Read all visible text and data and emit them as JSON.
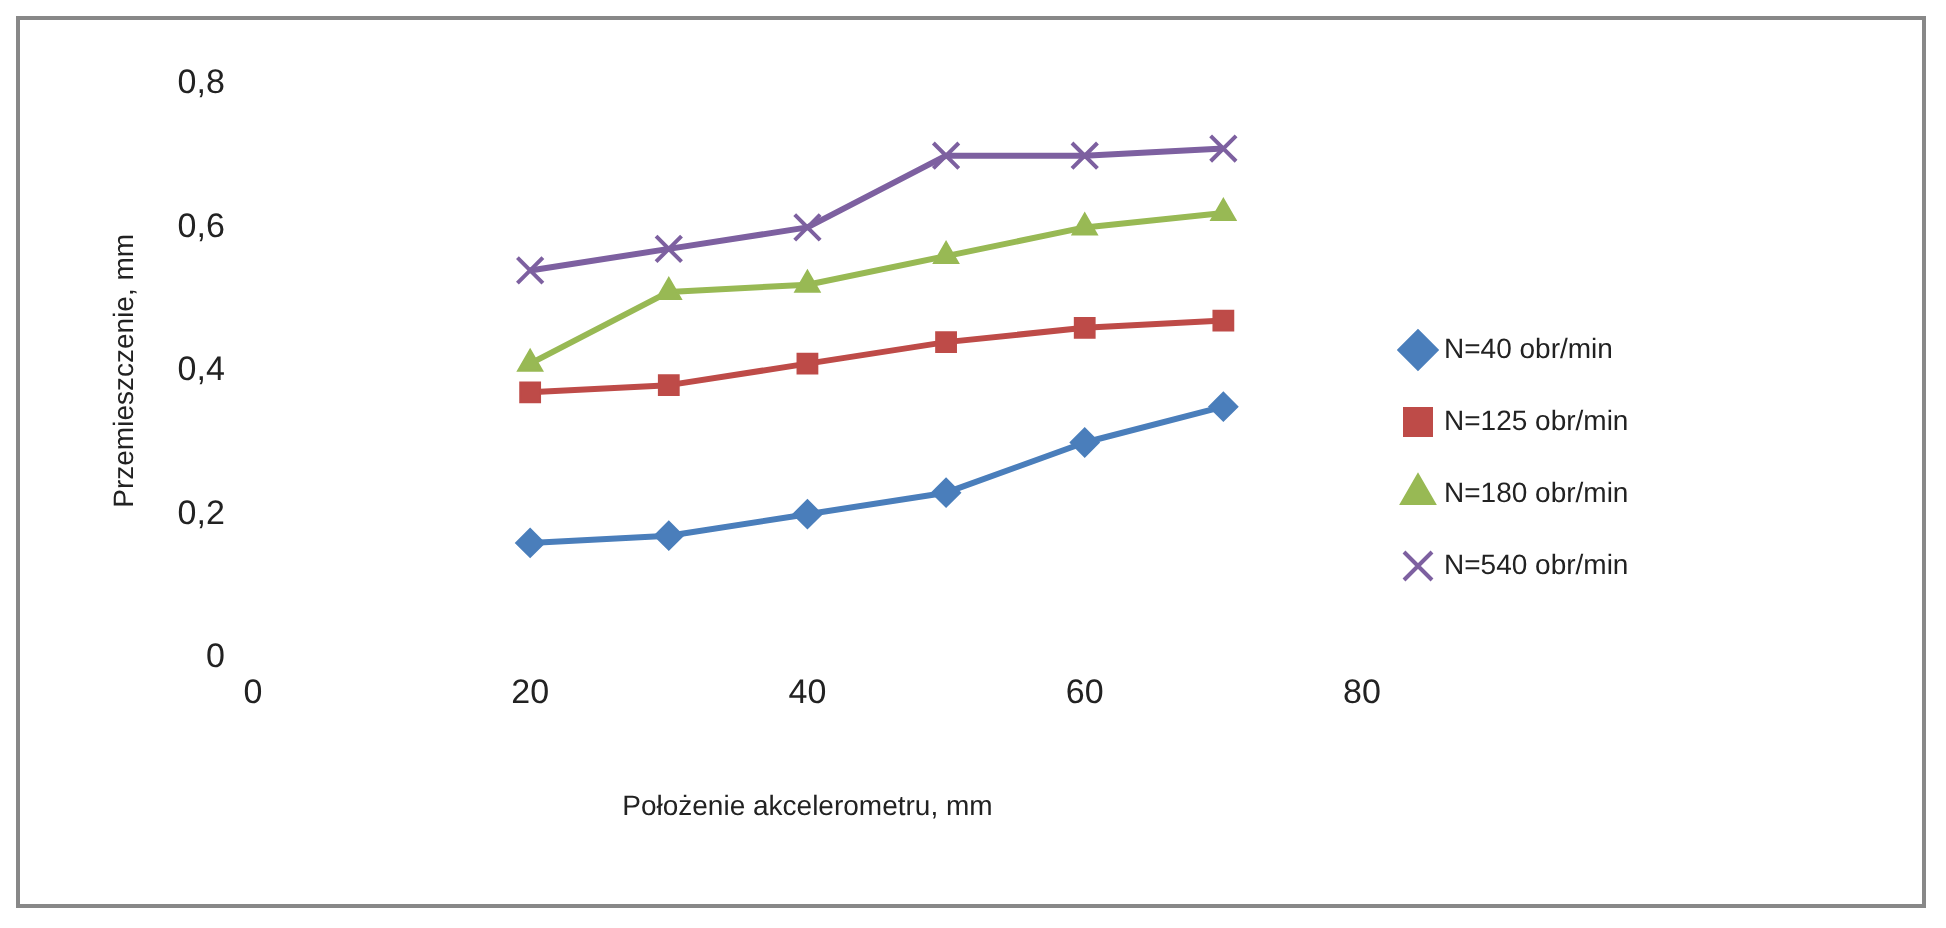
{
  "chart_data": {
    "type": "line",
    "xlabel": "Położenie akcelerometru, mm",
    "ylabel": "Przemieszczenie, mm",
    "xlim": [
      0,
      80
    ],
    "xticks": [
      0,
      20,
      40,
      60,
      80
    ],
    "ylim": [
      0,
      0.8
    ],
    "yticks": [
      0,
      {
        "value": 0.2,
        "label": "0,2"
      },
      {
        "value": 0.4,
        "label": "0,4"
      },
      {
        "value": 0.6,
        "label": "0,6"
      },
      {
        "value": 0.8,
        "label": "0,8"
      }
    ],
    "grid": false,
    "legend": "right",
    "line_style": "solid",
    "x": [
      20,
      30,
      40,
      50,
      60,
      70
    ],
    "series": [
      {
        "name": "N=40 obr/min",
        "color": "#4a7ebb",
        "marker": "diamond",
        "values": [
          0.16,
          0.17,
          0.2,
          0.23,
          0.3,
          0.35
        ]
      },
      {
        "name": "N=125 obr/min",
        "color": "#be4b48",
        "marker": "square",
        "values": [
          0.37,
          0.38,
          0.41,
          0.44,
          0.46,
          0.47
        ]
      },
      {
        "name": "N=180 obr/min",
        "color": "#98b954",
        "marker": "triangle",
        "values": [
          0.41,
          0.51,
          0.52,
          0.56,
          0.6,
          0.62
        ]
      },
      {
        "name": "N=540 obr/min",
        "color": "#7d60a0",
        "marker": "cross",
        "values": [
          0.54,
          0.57,
          0.6,
          0.7,
          0.7,
          0.71
        ]
      }
    ]
  }
}
